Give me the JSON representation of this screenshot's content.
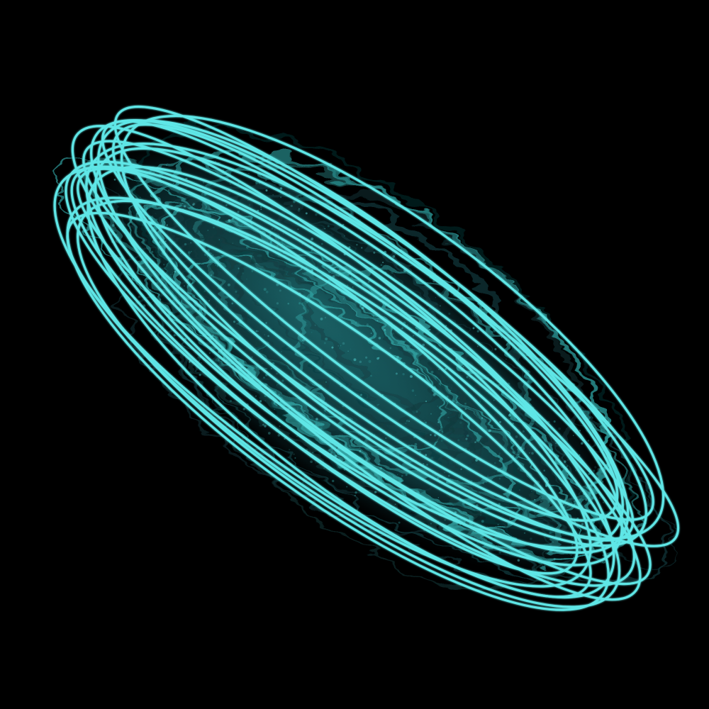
{
  "scene": {
    "subject": "abstract-elliptical-orbits",
    "background_color": "#000000",
    "line_color": "#5ee6e6",
    "texture_color": "#2f9e9e",
    "texture_dark_color": "#0f3a3d",
    "orbit_count": 18
  }
}
